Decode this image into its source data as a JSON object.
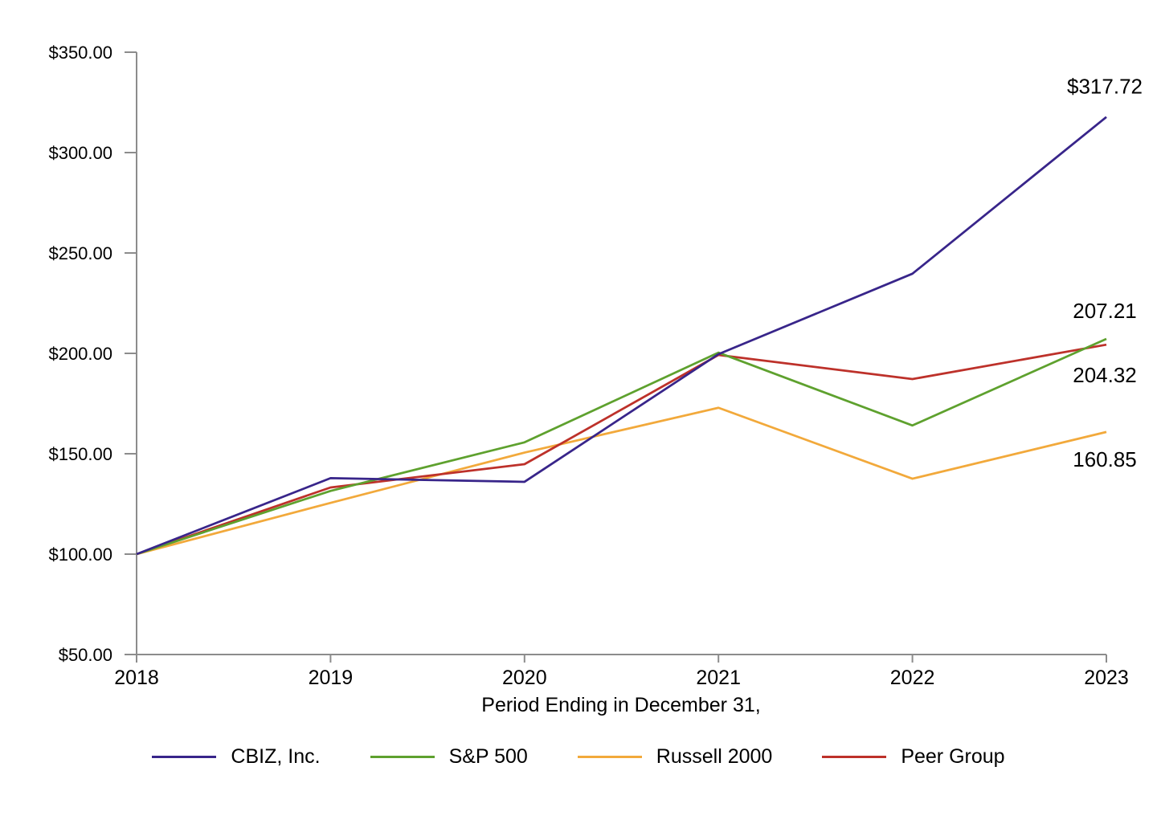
{
  "chart_data": {
    "type": "line",
    "title": "",
    "xlabel": "Period Ending in December 31,",
    "ylabel": "",
    "categories": [
      2018,
      2019,
      2020,
      2021,
      2022,
      2023
    ],
    "x_tick_labels": [
      "2018",
      "2019",
      "2020",
      "2021",
      "2022",
      "2023"
    ],
    "y_tick_labels": [
      "$50.00",
      "$100.00",
      "$150.00",
      "$200.00",
      "$250.00",
      "$300.00",
      "$350.00"
    ],
    "y_tick_values": [
      50,
      100,
      150,
      200,
      250,
      300,
      350
    ],
    "ylim": [
      50,
      350
    ],
    "grid": false,
    "legend_position": "bottom",
    "axis_color": "#8C8C8C",
    "text_color": "#000000",
    "series": [
      {
        "name": "CBIZ, Inc.",
        "color": "#38258A",
        "values": [
          100.0,
          137.84,
          136.02,
          199.61,
          239.67,
          317.72
        ],
        "end_label": "$317.72",
        "end_label_dy": -38
      },
      {
        "name": "S&P 500",
        "color": "#5EA12E",
        "values": [
          100.0,
          131.49,
          155.68,
          200.37,
          164.08,
          207.21
        ],
        "end_label": "207.21",
        "end_label_dy": -35
      },
      {
        "name": "Russell 2000",
        "color": "#F2A93B",
        "values": [
          100.0,
          125.52,
          150.58,
          172.9,
          137.56,
          160.85
        ],
        "end_label": "160.85",
        "end_label_dy": 34
      },
      {
        "name": "Peer Group",
        "color": "#BD312A",
        "values": [
          100.0,
          133.2,
          144.8,
          199.2,
          187.2,
          204.32
        ],
        "end_label": "204.32",
        "end_label_dy": 38
      }
    ]
  }
}
